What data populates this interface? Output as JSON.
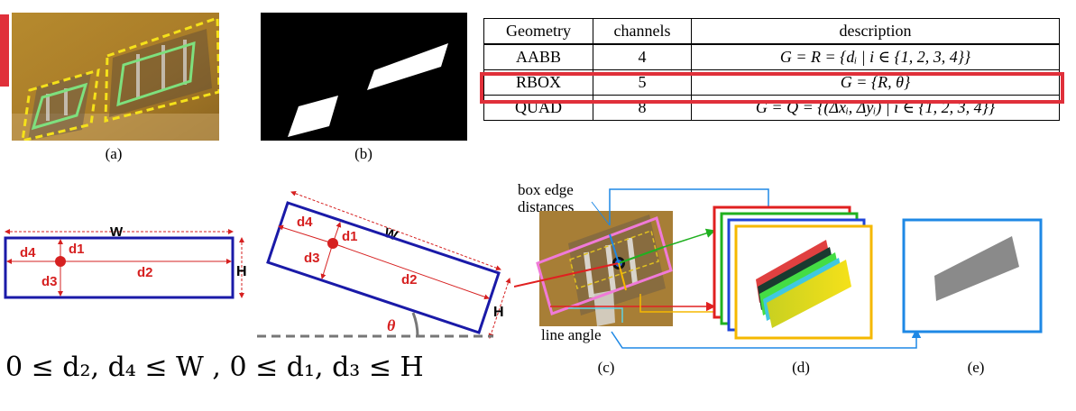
{
  "captions": {
    "a": "(a)",
    "b": "(b)",
    "c": "(c)",
    "d": "(d)",
    "e": "(e)"
  },
  "table": {
    "headers": [
      "Geometry",
      "channels",
      "description"
    ],
    "rows": [
      {
        "geometry": "AABB",
        "channels": "4",
        "description": "G = R = {dᵢ | i ∈ {1, 2, 3, 4}}"
      },
      {
        "geometry": "RBOX",
        "channels": "5",
        "description": "G = {R, θ}"
      },
      {
        "geometry": "QUAD",
        "channels": "8",
        "description": "G = Q = {(Δxᵢ, Δyᵢ) | i ∈ {1, 2, 3, 4}}"
      }
    ],
    "highlighted_row": "RBOX"
  },
  "box_diagram": {
    "width_label": "W",
    "height_label": "H",
    "distances": [
      "d1",
      "d2",
      "d3",
      "d4"
    ],
    "angle_label": "θ"
  },
  "formula": "0 ≤ d₂, d₄ ≤ W ,  0 ≤ d₁, d₃ ≤ H",
  "pipeline": {
    "box_edge_label_1": "box edge",
    "box_edge_label_2": "distances",
    "line_angle_label": "line angle"
  },
  "colors": {
    "box_blue": "#1a1aa8",
    "annotation_red": "#d62020",
    "highlight_red": "#e0303a",
    "quad_green": "#7ee07e",
    "quad_yellow": "#f5e11a",
    "map_orange": "#f5b800",
    "arrow_blue": "#1e88e5"
  }
}
